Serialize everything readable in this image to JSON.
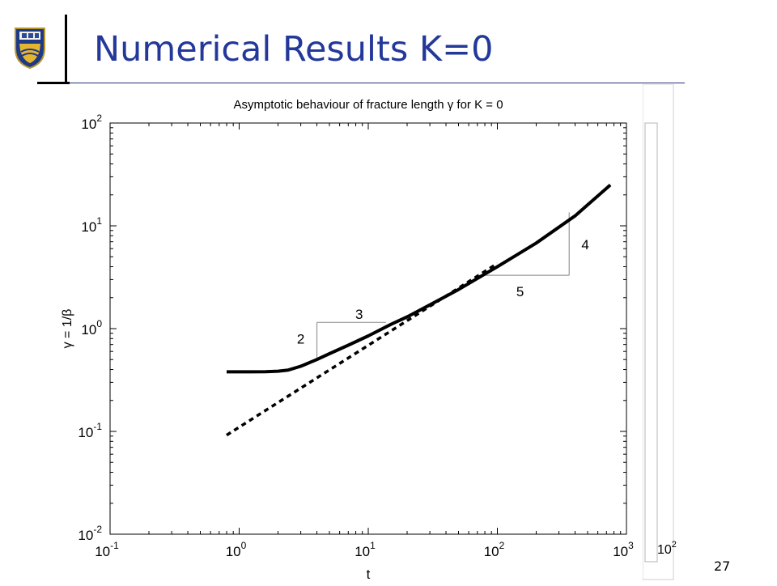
{
  "slide": {
    "title": "Numerical Results K=0",
    "number": "27"
  },
  "colors": {
    "title": "#24389a",
    "curve": "#000000",
    "triangle": "#999999"
  },
  "icons": {
    "logo": "university-crest-icon"
  },
  "chart_data": {
    "type": "line",
    "title": "Asymptotic behaviour of fracture length γ for K = 0",
    "xlabel": "t",
    "ylabel": "γ = 1/β",
    "xscale": "log",
    "yscale": "log",
    "xlim": [
      0.1,
      1000
    ],
    "ylim": [
      0.01,
      100
    ],
    "grid": false,
    "x_ticks": [
      {
        "value": 0.1,
        "base": "10",
        "exp": "-1"
      },
      {
        "value": 1,
        "base": "10",
        "exp": "0"
      },
      {
        "value": 10,
        "base": "10",
        "exp": "1"
      },
      {
        "value": 100,
        "base": "10",
        "exp": "2"
      },
      {
        "value": 1000,
        "base": "10",
        "exp": "3"
      }
    ],
    "y_ticks": [
      {
        "value": 0.01,
        "base": "10",
        "exp": "-2"
      },
      {
        "value": 0.1,
        "base": "10",
        "exp": "-1"
      },
      {
        "value": 1,
        "base": "10",
        "exp": "0"
      },
      {
        "value": 10,
        "base": "10",
        "exp": "1"
      },
      {
        "value": 100,
        "base": "10",
        "exp": "2"
      }
    ],
    "series": [
      {
        "style": "solid",
        "x": [
          0.8,
          1.2,
          1.6,
          2.0,
          2.4,
          3.0,
          4.0,
          5.0,
          7.0,
          10,
          15,
          20,
          30,
          50,
          100,
          200,
          400,
          750
        ],
        "y": [
          0.38,
          0.38,
          0.381,
          0.385,
          0.395,
          0.43,
          0.5,
          0.57,
          0.69,
          0.85,
          1.1,
          1.3,
          1.7,
          2.4,
          4.0,
          6.8,
          12.5,
          25
        ]
      },
      {
        "style": "dashed",
        "x": [
          0.8,
          100
        ],
        "y": [
          0.092,
          4.3
        ]
      }
    ],
    "slope_triangles": [
      {
        "x_start": 4.0,
        "x_end": 13.7,
        "y_low": 0.5,
        "y_high": 1.15,
        "horizontal_label": "3",
        "vertical_label": "2",
        "horizontal_label_at": [
          8.5,
          1.38
        ],
        "vertical_label_at": [
          3.0,
          0.8
        ]
      },
      {
        "x_start": 72,
        "x_end": 360,
        "y_low": 3.3,
        "y_high": 13.5,
        "horizontal_label": "5",
        "vertical_label": "4",
        "horizontal_label_at": [
          150,
          2.3
        ],
        "vertical_label_at": [
          480,
          6.6
        ]
      }
    ],
    "background_axis": {
      "tick_label": {
        "base": "10",
        "exp": "2"
      }
    }
  }
}
